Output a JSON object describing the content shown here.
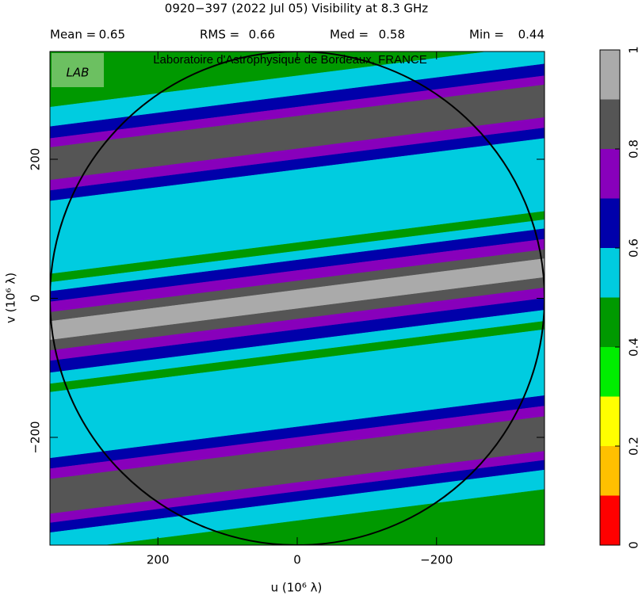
{
  "chart_data": {
    "type": "uv-bands",
    "title": "0920−397  (2022 Jul 05)   Visibility at  8.3 GHz",
    "stats": [
      {
        "label": "Mean =",
        "value": 0.65
      },
      {
        "label": "RMS =",
        "value": 0.66
      },
      {
        "label": "Med =",
        "value": 0.58
      },
      {
        "label": "Min =",
        "value": 0.44
      }
    ],
    "watermark": "Laboratoire d'Astrophysique de Bordeaux, FRANCE",
    "logo": "LAB",
    "x_label": "u  (10⁶ λ)",
    "y_label": "v  (10⁶ λ)",
    "xlim": [
      355,
      -355
    ],
    "ylim": [
      -355,
      355
    ],
    "xticks": [
      200,
      0,
      {
        "value": -200,
        "label": "−200"
      }
    ],
    "yticks": [
      {
        "value": -200,
        "label": "−200"
      },
      0,
      200
    ],
    "stripe_slope": -0.127,
    "circle_radius": 355,
    "bands": [
      {
        "level": 0.4,
        "v": [
          320,
          420
        ]
      },
      {
        "level": 0.5,
        "v": [
          292,
          320
        ]
      },
      {
        "level": 0.6,
        "v": [
          275,
          292
        ]
      },
      {
        "level": 0.7,
        "v": [
          262,
          275
        ]
      },
      {
        "level": 0.8,
        "v": [
          215,
          262
        ]
      },
      {
        "level": 0.7,
        "v": [
          200,
          215
        ]
      },
      {
        "level": 0.6,
        "v": [
          185,
          200
        ]
      },
      {
        "level": 0.5,
        "v": [
          80,
          185
        ]
      },
      {
        "level": 0.4,
        "v": [
          68,
          80
        ]
      },
      {
        "level": 0.5,
        "v": [
          55,
          68
        ]
      },
      {
        "level": 0.6,
        "v": [
          40,
          55
        ]
      },
      {
        "level": 0.7,
        "v": [
          25,
          40
        ]
      },
      {
        "level": 0.8,
        "v": [
          12,
          25
        ]
      },
      {
        "level": 0.9,
        "v": [
          -15,
          12
        ]
      },
      {
        "level": 0.8,
        "v": [
          -30,
          -15
        ]
      },
      {
        "level": 0.7,
        "v": [
          -45,
          -30
        ]
      },
      {
        "level": 0.6,
        "v": [
          -62,
          -45
        ]
      },
      {
        "level": 0.5,
        "v": [
          -78,
          -62
        ]
      },
      {
        "level": 0.4,
        "v": [
          -90,
          -78
        ]
      },
      {
        "level": 0.5,
        "v": [
          -185,
          -90
        ]
      },
      {
        "level": 0.6,
        "v": [
          -200,
          -185
        ]
      },
      {
        "level": 0.7,
        "v": [
          -215,
          -200
        ]
      },
      {
        "level": 0.8,
        "v": [
          -265,
          -215
        ]
      },
      {
        "level": 0.7,
        "v": [
          -278,
          -265
        ]
      },
      {
        "level": 0.6,
        "v": [
          -292,
          -278
        ]
      },
      {
        "level": 0.5,
        "v": [
          -320,
          -292
        ]
      },
      {
        "level": 0.4,
        "v": [
          -420,
          -320
        ]
      }
    ],
    "colorbar": {
      "levels": [
        0,
        0.1,
        0.2,
        0.3,
        0.4,
        0.5,
        0.6,
        0.7,
        0.8,
        0.9,
        1
      ],
      "colors": [
        "#ff0000",
        "#ffc000",
        "#ffff00",
        "#00ee00",
        "#009900",
        "#00cce0",
        "#0000aa",
        "#8800bb",
        "#555555",
        "#aaaaaa"
      ],
      "ticks": [
        0,
        0.2,
        0.4,
        0.6,
        0.8,
        1
      ]
    }
  }
}
